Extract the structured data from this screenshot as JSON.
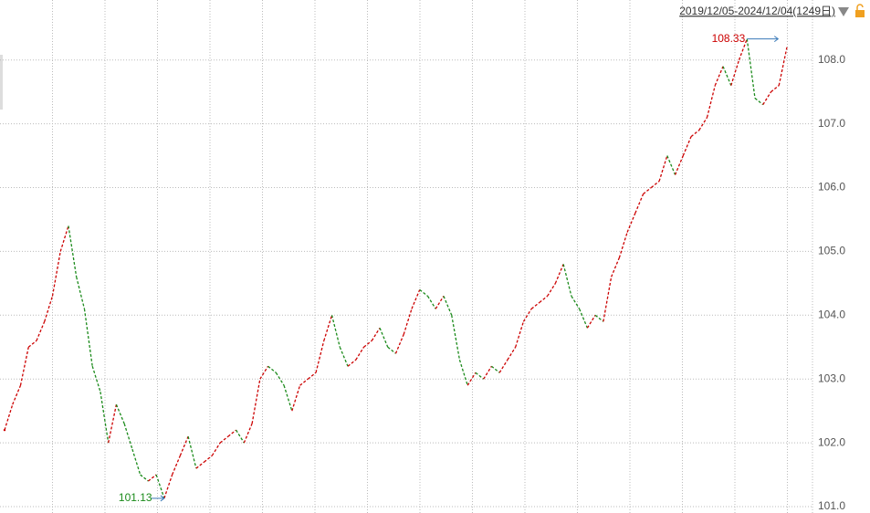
{
  "chart_data": {
    "type": "line",
    "date_range": "2019/12/05-2024/12/04(1249日)",
    "values": [
      102.2,
      102.6,
      102.9,
      103.5,
      103.6,
      103.9,
      104.3,
      105.0,
      105.4,
      104.6,
      104.1,
      103.2,
      102.8,
      102.0,
      102.6,
      102.3,
      101.9,
      101.5,
      101.4,
      101.5,
      101.13,
      101.5,
      101.8,
      102.1,
      101.6,
      101.7,
      101.8,
      102.0,
      102.1,
      102.2,
      102.0,
      102.3,
      103.0,
      103.2,
      103.1,
      102.9,
      102.5,
      102.9,
      103.0,
      103.1,
      103.6,
      104.0,
      103.5,
      103.2,
      103.3,
      103.5,
      103.6,
      103.8,
      103.5,
      103.4,
      103.7,
      104.1,
      104.4,
      104.3,
      104.1,
      104.3,
      104.0,
      103.3,
      102.9,
      103.1,
      103.0,
      103.2,
      103.1,
      103.3,
      103.5,
      103.9,
      104.1,
      104.2,
      104.3,
      104.5,
      104.8,
      104.3,
      104.1,
      103.8,
      104.0,
      103.9,
      104.6,
      104.9,
      105.3,
      105.6,
      105.9,
      106.0,
      106.1,
      106.5,
      106.2,
      106.5,
      106.8,
      106.9,
      107.1,
      107.6,
      107.9,
      107.6,
      108.0,
      108.33,
      107.4,
      107.3,
      107.5,
      107.6,
      108.2
    ],
    "up_color": "#cc0000",
    "down_color": "#1a8a1a",
    "max_marker": 108.33,
    "min_marker": 101.13,
    "ylim": [
      100.9,
      108.94
    ],
    "yticks": [
      {
        "value": 101,
        "label": "101.0"
      },
      {
        "value": 102,
        "label": "102.0"
      },
      {
        "value": 103,
        "label": "103.0"
      },
      {
        "value": 104,
        "label": "104.0"
      },
      {
        "value": 105,
        "label": "105.0"
      },
      {
        "value": 106,
        "label": "106.0"
      },
      {
        "value": 107,
        "label": "107.0"
      },
      {
        "value": 108,
        "label": "108.0"
      }
    ],
    "grid": true
  }
}
